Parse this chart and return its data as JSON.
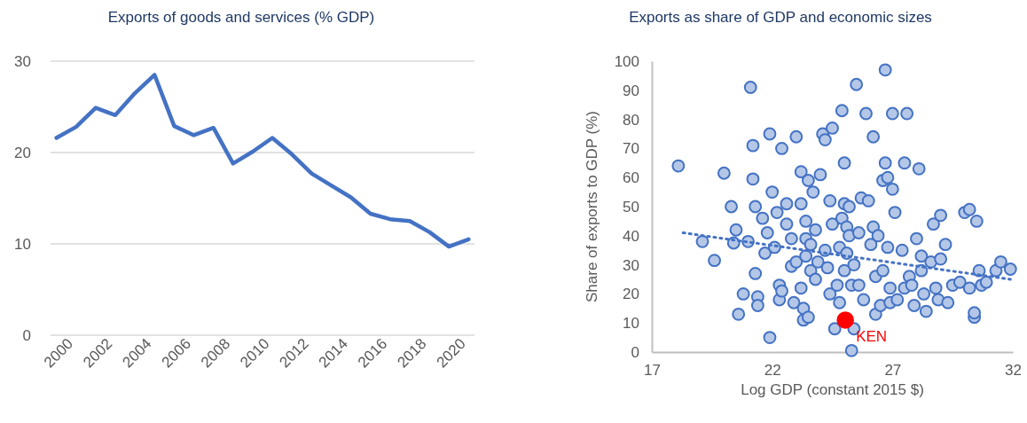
{
  "chart_data": [
    {
      "type": "line",
      "title": "Exports of goods and services (% GDP)",
      "x": [
        2000,
        2001,
        2002,
        2003,
        2004,
        2005,
        2006,
        2007,
        2008,
        2009,
        2010,
        2011,
        2012,
        2013,
        2014,
        2015,
        2016,
        2017,
        2018,
        2019,
        2020,
        2021
      ],
      "values": [
        21.6,
        22.8,
        24.9,
        24.1,
        26.5,
        28.5,
        22.9,
        21.9,
        22.7,
        18.8,
        20.1,
        21.6,
        19.8,
        17.7,
        16.4,
        15.1,
        13.3,
        12.7,
        12.5,
        11.3,
        9.7,
        10.5
      ],
      "color": "#4472c4",
      "xlim": [
        1999.7,
        2021.3
      ],
      "xticks": [
        2000,
        2002,
        2004,
        2006,
        2008,
        2010,
        2012,
        2014,
        2016,
        2018,
        2020
      ],
      "ylim": [
        0,
        30
      ],
      "yticks": [
        0,
        10,
        20,
        30
      ],
      "grid": "y"
    },
    {
      "type": "scatter",
      "title": "Exports as share of GDP and economic sizes",
      "xlabel": "Log GDP (constant 2015 $)",
      "ylabel": "Share of exports to GDP (%)",
      "marker": "circle",
      "xlim": [
        17,
        32
      ],
      "xticks": [
        17,
        22,
        27,
        32
      ],
      "ylim": [
        0,
        100
      ],
      "yticks": [
        0,
        10,
        20,
        30,
        40,
        50,
        60,
        70,
        80,
        90,
        100
      ],
      "series": [
        {
          "color": "#4472c4",
          "x": [
            18.1,
            19.1,
            19.6,
            20.0,
            20.3,
            20.4,
            20.5,
            20.6,
            20.8,
            21.0,
            21.1,
            21.2,
            21.2,
            21.3,
            21.3,
            21.4,
            21.4,
            21.6,
            21.7,
            21.8,
            21.9,
            21.9,
            22.0,
            22.1,
            22.2,
            22.3,
            22.3,
            22.4,
            22.4,
            22.6,
            22.6,
            22.8,
            22.8,
            22.9,
            23.0,
            23.0,
            23.2,
            23.2,
            23.2,
            23.3,
            23.3,
            23.4,
            23.4,
            23.4,
            23.5,
            23.5,
            23.6,
            23.6,
            23.7,
            23.8,
            23.8,
            23.9,
            24.0,
            24.1,
            24.2,
            24.2,
            24.3,
            24.4,
            24.4,
            24.5,
            24.5,
            24.6,
            24.7,
            24.8,
            24.8,
            24.9,
            24.9,
            25.0,
            25.0,
            25.0,
            25.1,
            25.1,
            25.2,
            25.2,
            25.3,
            25.3,
            25.4,
            25.4,
            25.5,
            25.6,
            25.6,
            25.7,
            25.8,
            25.9,
            26.0,
            26.1,
            26.2,
            26.2,
            26.3,
            26.3,
            26.4,
            26.5,
            26.6,
            26.6,
            26.7,
            26.7,
            26.8,
            26.8,
            26.9,
            26.9,
            27.0,
            27.0,
            27.1,
            27.2,
            27.4,
            27.5,
            27.5,
            27.6,
            27.7,
            27.8,
            27.9,
            28.0,
            28.1,
            28.2,
            28.2,
            28.3,
            28.4,
            28.6,
            28.7,
            28.8,
            28.9,
            29.0,
            29.0,
            29.2,
            29.3,
            29.5,
            29.8,
            30.0,
            30.2,
            30.2,
            30.4,
            30.4,
            30.5,
            30.6,
            30.7,
            30.9,
            31.3,
            31.5,
            31.9
          ],
          "values": [
            64,
            38,
            31.5,
            61.5,
            50,
            37.5,
            42,
            13,
            20,
            38,
            91,
            71,
            59.5,
            50,
            27,
            19,
            16,
            46,
            34,
            41,
            75,
            5,
            55,
            36,
            48,
            23,
            18,
            70,
            21,
            44,
            51,
            39,
            29.5,
            17,
            74,
            31,
            62,
            51,
            22,
            15,
            11,
            45,
            39,
            33,
            59,
            12,
            37,
            28,
            55,
            42,
            25,
            31,
            61,
            75,
            73,
            35,
            29,
            52,
            20,
            77,
            44,
            8,
            23,
            36,
            17,
            83,
            46,
            65,
            51,
            28,
            43,
            34,
            50,
            40,
            23,
            0.5,
            30,
            8,
            92,
            41,
            23,
            53,
            18,
            82,
            52,
            37,
            74,
            43,
            26,
            13,
            40,
            16,
            59,
            28,
            97,
            65,
            60,
            36,
            17,
            22,
            82,
            56,
            48,
            18,
            35,
            65,
            22,
            82,
            26,
            23,
            16,
            39,
            63,
            33,
            28,
            20,
            14,
            31,
            44,
            22,
            18,
            47,
            32,
            37,
            17,
            23,
            24,
            48,
            49,
            22,
            12,
            13.5,
            45,
            28,
            23,
            24,
            28,
            31,
            28.5
          ]
        },
        {
          "type": "line",
          "color": "#4472c4",
          "line_style": "dotted",
          "marker": "none",
          "x": [
            18.3,
            31.9
          ],
          "values": [
            41,
            25
          ]
        },
        {
          "name": "KEN",
          "color": "#ff0000",
          "x": [
            25.04
          ],
          "values": [
            11
          ]
        }
      ]
    }
  ]
}
